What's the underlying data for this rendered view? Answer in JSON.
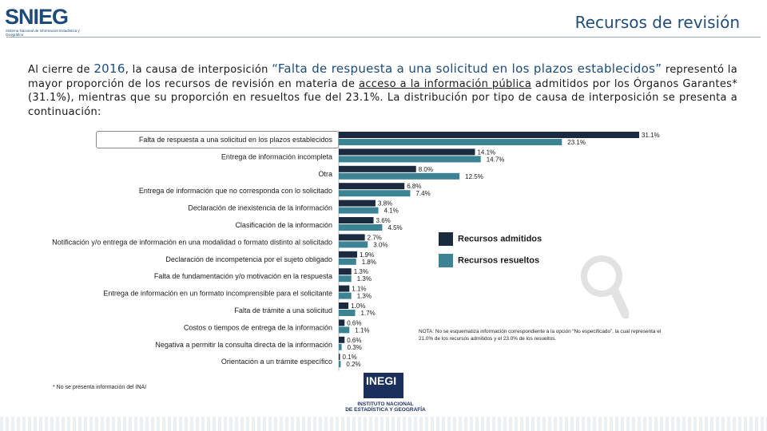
{
  "header": {
    "logo_text": "SNIEG",
    "logo_subtitle": "Sistema Nacional de Información Estadística y Geográfica",
    "title": "Recursos de revisión"
  },
  "intro": {
    "p1": "Al cierre de ",
    "year": "2016",
    "p2": ", la causa de interposición ",
    "quote": "“Falta de respuesta a una solicitud en los plazos establecidos”",
    "p3": " representó la mayor proporción de los recursos de revisión en materia de ",
    "underlined": "acceso a la información pública",
    "p4": " admitidos por los Órganos Garantes* (31.1%), mientras que su proporción en resueltos fue del 23.1%. La distribución por tipo de causa de interposición se presenta a continuación:"
  },
  "colors": {
    "admitidos": "#1b2a3f",
    "resueltos": "#3c8494"
  },
  "chart_data": {
    "type": "bar",
    "orientation": "horizontal",
    "title": "",
    "xlabel": "",
    "ylabel": "",
    "xlim": [
      0,
      31.1
    ],
    "categories": [
      "Falta de respuesta a una solicitud en los plazos establecidos",
      "Entrega de información incompleta",
      "Otra",
      "Entrega de información que no corresponda con lo solicitado",
      "Declaración de inexistencia de la información",
      "Clasificación de la información",
      "Notificación y/o entrega de información en una modalidad o formato distinto al solicitado",
      "Declaración de incompetencia por el sujeto obligado",
      "Falta de fundamentación y/o motivación en la respuesta",
      "Entrega de información en un formato incomprensible para el solicitante",
      "Falta de trámite a una solicitud",
      "Costos o tiempos de entrega de la información",
      "Negativa a permitir la consulta directa de la información",
      "Orientación a un trámite específico"
    ],
    "series": [
      {
        "name": "Recursos admitidos",
        "values": [
          31.1,
          14.1,
          8.0,
          6.8,
          3.8,
          3.6,
          2.7,
          1.9,
          1.3,
          1.1,
          1.0,
          0.6,
          0.6,
          0.1
        ],
        "labels": [
          "31.1%",
          "14.1%",
          "8.0%",
          "6.8%",
          "3.8%",
          "3.6%",
          "2.7%",
          "1.9%",
          "1.3%",
          "1.1%",
          "1.0%",
          "0.6%",
          "0.6%",
          "0.1%"
        ]
      },
      {
        "name": "Recursos resueltos",
        "values": [
          23.1,
          14.7,
          12.5,
          7.4,
          4.1,
          4.5,
          3.0,
          1.8,
          1.3,
          1.3,
          1.7,
          1.1,
          0.3,
          0.2
        ],
        "labels": [
          "23.1%",
          "14.7%",
          "12.5%",
          "7.4%",
          "4.1%",
          "4.5%",
          "3.0%",
          "1.8%",
          "1.3%",
          "1.3%",
          "1.7%",
          "1.1%",
          "0.3%",
          "0.2%"
        ]
      }
    ],
    "legend": [
      "Recursos admitidos",
      "Recursos resueltos"
    ]
  },
  "note": "NOTA: No se esquematiza información correspondiente a la opción “No especificado”, la cual representa el 21.0% de los recursos admitidos y el 23.0% de los resueltos.",
  "footnote": "* No se presenta información del INAI",
  "inegi": {
    "logo_text": "INEGI",
    "line1": "INSTITUTO NACIONAL",
    "line2": "DE ESTADÍSTICA Y GEOGRAFÍA"
  }
}
